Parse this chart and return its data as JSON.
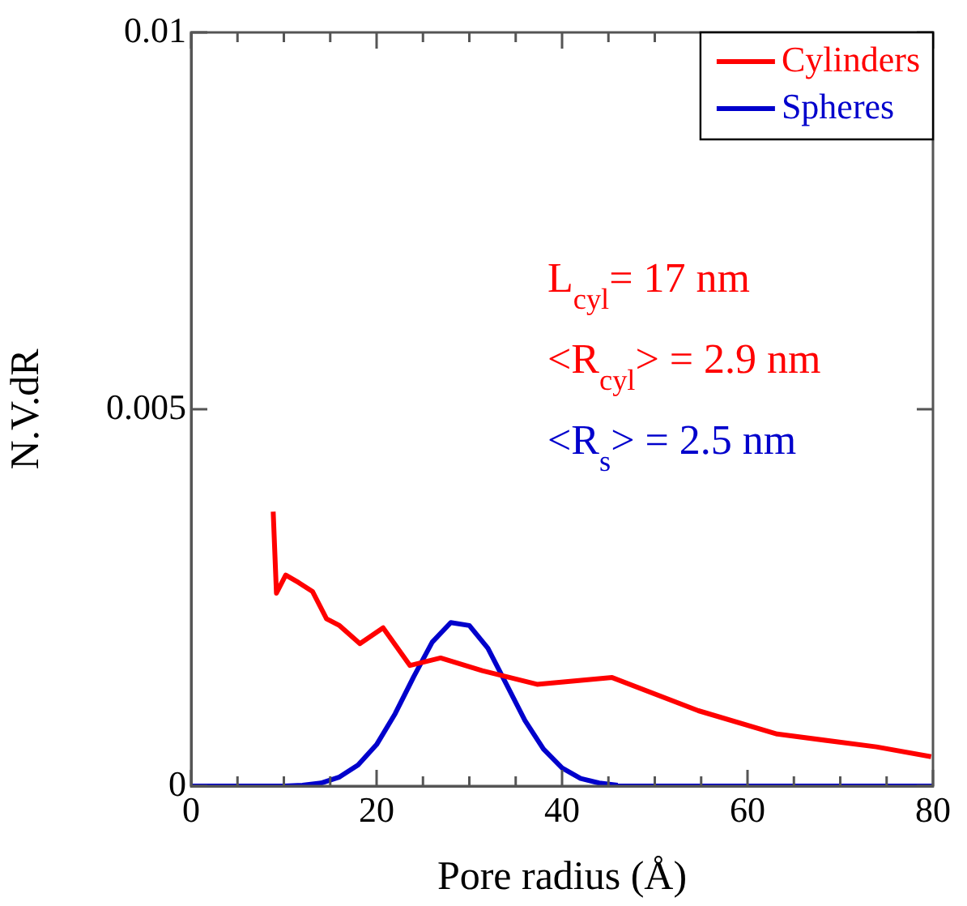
{
  "chart_data": {
    "type": "line",
    "xlabel": "Pore radius (Å)",
    "ylabel": "N.V.dR",
    "xlim": [
      0,
      80
    ],
    "xticks": [
      0,
      {
        "value": 5,
        "label": null
      },
      {
        "value": 10,
        "label": null
      },
      {
        "value": 15,
        "label": null
      },
      20,
      {
        "value": 25,
        "label": null
      },
      {
        "value": 30,
        "label": null
      },
      {
        "value": 35,
        "label": null
      },
      40,
      {
        "value": 45,
        "label": null
      },
      {
        "value": 50,
        "label": null
      },
      {
        "value": 55,
        "label": null
      },
      60,
      {
        "value": 65,
        "label": null
      },
      {
        "value": 70,
        "label": null
      },
      {
        "value": 75,
        "label": null
      },
      80
    ],
    "ylim": [
      0,
      0.01
    ],
    "yticks": [
      0,
      0.005,
      0.01
    ],
    "legend": "top right",
    "marker": "none",
    "line_style": "solid",
    "series": [
      {
        "name": "Cylinders",
        "color": "#ff0000",
        "x": [
          8.85,
          9.2,
          10.2,
          11.6,
          13.1,
          14.6,
          16.0,
          18.2,
          20.7,
          23.6,
          26.9,
          31.4,
          37.3,
          45.4,
          54.7,
          63.2,
          73.9,
          79.8
        ],
        "values": [
          0.00364,
          0.00256,
          0.0028,
          0.0027,
          0.00258,
          0.00222,
          0.00213,
          0.00189,
          0.0021,
          0.0016,
          0.0017,
          0.00153,
          0.00135,
          0.00144,
          0.001,
          0.00069,
          0.00052,
          0.00039
        ]
      },
      {
        "name": "Spheres",
        "color": "#0000cc",
        "x": [
          0,
          10,
          12,
          14,
          16,
          18,
          20,
          22,
          24,
          26,
          28,
          30,
          32,
          34,
          36,
          38,
          40,
          42,
          44,
          46,
          48,
          60,
          80
        ],
        "values": [
          0,
          0,
          1e-05,
          4e-05,
          0.00012,
          0.00028,
          0.00055,
          0.00096,
          0.00145,
          0.00191,
          0.00217,
          0.00213,
          0.00183,
          0.00135,
          0.00087,
          0.00049,
          0.00024,
          0.0001,
          4e-05,
          1e-05,
          0,
          0,
          0
        ]
      }
    ],
    "annotations": [
      "L$_{cyl}$= 17 nm",
      "<R$_{cyl}$> = 2.9 nm",
      "<R$_{s}$> = 2.5 nm"
    ]
  }
}
